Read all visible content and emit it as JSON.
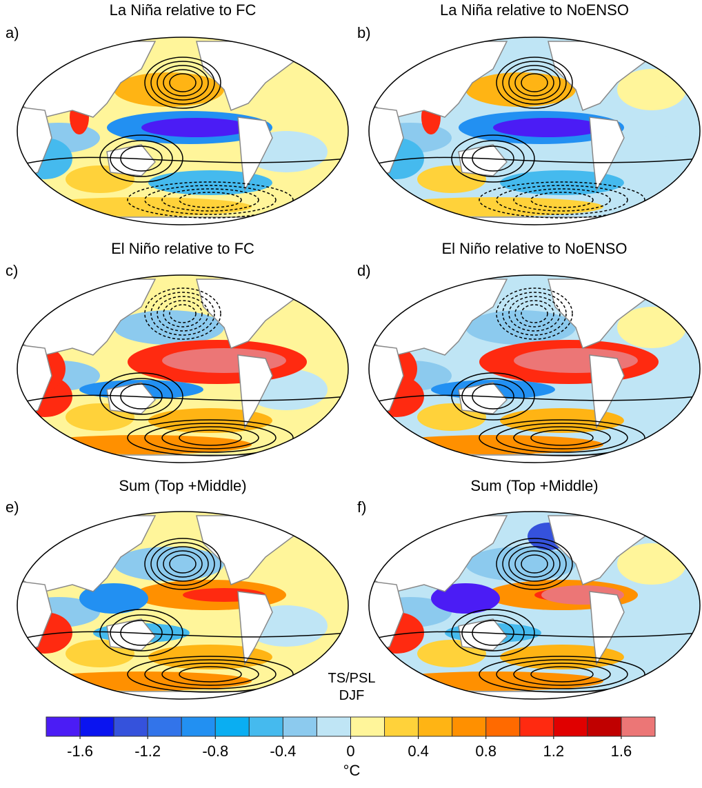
{
  "panels": [
    {
      "label": "a)",
      "title": "La Niña relative to FC"
    },
    {
      "label": "b)",
      "title": "La Niña relative to NoENSO"
    },
    {
      "label": "c)",
      "title": "El Niño relative to FC"
    },
    {
      "label": "d)",
      "title": "El Niño relative to NoENSO"
    },
    {
      "label": "e)",
      "title": "Sum (Top +Middle)"
    },
    {
      "label": "f)",
      "title": "Sum (Top +Middle)"
    }
  ],
  "annotation": [
    "TS/PSL",
    "DJF"
  ],
  "colorbar": {
    "colors": [
      "#4b1cf5",
      "#0a14f0",
      "#3552dc",
      "#3274ea",
      "#2290f2",
      "#0aaef2",
      "#45baee",
      "#8ccaee",
      "#bfe5f5",
      "#fff59a",
      "#ffd23a",
      "#ffb414",
      "#ff9000",
      "#ff6a00",
      "#ff2a10",
      "#e00000",
      "#c00000",
      "#ec7676"
    ],
    "lim": [
      -1.8,
      1.8
    ],
    "ticks": [
      -1.6,
      -1.2,
      -0.8,
      -0.4,
      0,
      0.4,
      0.8,
      1.2,
      1.6
    ],
    "unit": "°C"
  }
}
